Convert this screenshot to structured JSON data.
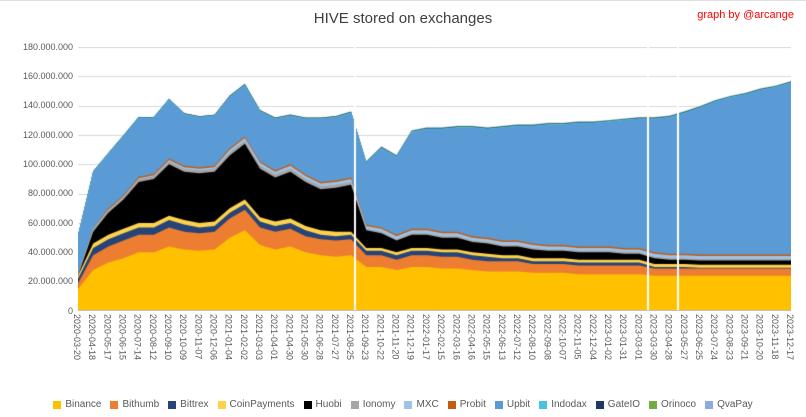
{
  "title": "HIVE stored on exchanges",
  "credit": "graph by @arcange",
  "colors": {
    "background": "#FFFFFF",
    "gridline": "#D9D9D9",
    "axis_line": "#BFBFBF",
    "tick_text": "#595959",
    "title_text": "#404040",
    "credit_text": "#FF0000"
  },
  "chart_data": {
    "type": "area",
    "stacked": true,
    "title": "HIVE stored on exchanges",
    "xlabel": "",
    "ylabel": "",
    "value_unit": "HIVE, series values expressed in millions",
    "unit_multiplier": 1000000,
    "ylim": [
      0,
      180000000
    ],
    "grid": "horizontal",
    "legend_position": "bottom",
    "y_tick_values": [
      0,
      20000000,
      40000000,
      60000000,
      80000000,
      100000000,
      120000000,
      140000000,
      160000000,
      180000000
    ],
    "y_tick_labels": [
      "0",
      "20.000.000",
      "40.000.000",
      "60.000.000",
      "80.000.000",
      "100.000.000",
      "120.000.000",
      "140.000.000",
      "160.000.000",
      "180.000.000"
    ],
    "categories": [
      "2020-03-20",
      "2020-04-18",
      "2020-05-17",
      "2020-06-15",
      "2020-07-14",
      "2020-08-12",
      "2020-09-10",
      "2020-10-09",
      "2020-11-07",
      "2020-12-06",
      "2021-01-04",
      "2021-02-02",
      "2021-03-03",
      "2021-04-01",
      "2021-04-30",
      "2021-05-30",
      "2021-06-28",
      "2021-07-27",
      "2021-08-25",
      "2021-09-23",
      "2021-10-22",
      "2021-11-20",
      "2021-12-19",
      "2022-01-17",
      "2022-02-15",
      "2022-03-16",
      "2022-04-16",
      "2022-05-15",
      "2022-06-13",
      "2022-07-12",
      "2022-08-10",
      "2022-09-08",
      "2022-10-07",
      "2022-11-05",
      "2022-12-04",
      "2023-01-02",
      "2023-01-31",
      "2023-03-01",
      "2023-03-30",
      "2023-04-28",
      "2023-05-27",
      "2023-06-25",
      "2023-07-24",
      "2023-08-23",
      "2023-09-21",
      "2023-10-20",
      "2023-11-18",
      "2023-12-17"
    ],
    "gap_positions": [
      0.388,
      0.8,
      0.842
    ],
    "series": [
      {
        "name": "Binance",
        "color": "#FFC000",
        "values": [
          15,
          28,
          33,
          36,
          40,
          40,
          44,
          42,
          41,
          42,
          50,
          55,
          45,
          42,
          44,
          40,
          38,
          37,
          38,
          30,
          30,
          28,
          30,
          30,
          29,
          29,
          28,
          27,
          27,
          27,
          26,
          26,
          26,
          25,
          25,
          25,
          25,
          25,
          24,
          24,
          24,
          24,
          24,
          24,
          24,
          24,
          24,
          24
        ]
      },
      {
        "name": "Bithumb",
        "color": "#ED7D31",
        "values": [
          4,
          10,
          11,
          12,
          12,
          12,
          13,
          12,
          12,
          12,
          13,
          14,
          12,
          12,
          12,
          11,
          11,
          11,
          11,
          8,
          8,
          7,
          8,
          8,
          8,
          8,
          7,
          7,
          7,
          7,
          6,
          6,
          6,
          6,
          6,
          6,
          6,
          6,
          5,
          5,
          5,
          5,
          5,
          5,
          5,
          5,
          5,
          5
        ]
      },
      {
        "name": "Bittrex",
        "color": "#264478",
        "values": [
          3,
          5,
          5,
          5,
          5,
          5,
          5,
          5,
          4,
          4,
          4,
          4,
          4,
          4,
          4,
          4,
          3,
          3,
          3,
          3,
          3,
          3,
          3,
          3,
          3,
          3,
          3,
          3,
          2,
          2,
          2,
          2,
          2,
          2,
          2,
          2,
          2,
          2,
          1,
          1,
          1,
          0.5,
          0.5,
          0.5,
          0.5,
          0.5,
          0.5,
          0.5
        ]
      },
      {
        "name": "CoinPayments",
        "color": "#FFD24D",
        "values": [
          2,
          3,
          3,
          3,
          3,
          3,
          3,
          3,
          3,
          3,
          3,
          3,
          3,
          3,
          3,
          3,
          3,
          3,
          2,
          2,
          2,
          2,
          2,
          2,
          2,
          2,
          2,
          2,
          2,
          2,
          2,
          2,
          2,
          2,
          2,
          2,
          2,
          2,
          2,
          2,
          2,
          2,
          2,
          2,
          2,
          2,
          2,
          2
        ]
      },
      {
        "name": "Huobi",
        "color": "#000000",
        "values": [
          0,
          8,
          15,
          20,
          28,
          30,
          35,
          33,
          34,
          34,
          36,
          38,
          33,
          30,
          32,
          30,
          28,
          30,
          32,
          12,
          10,
          8,
          9,
          9,
          8,
          8,
          7,
          7,
          6,
          6,
          6,
          5,
          5,
          5,
          5,
          5,
          4,
          4,
          4,
          3,
          3,
          3,
          3,
          3,
          3,
          3,
          3,
          3
        ]
      },
      {
        "name": "Ionomy",
        "color": "#A6A6A6",
        "values": [
          1,
          2,
          2,
          2,
          2,
          2,
          2,
          2,
          2,
          2,
          2,
          2,
          2,
          2,
          2,
          2,
          2,
          2,
          2,
          1,
          1,
          1,
          1,
          1,
          1,
          1,
          1,
          1,
          1,
          1,
          1,
          1,
          1,
          1,
          1,
          1,
          1,
          1,
          1,
          1,
          1,
          1,
          1,
          1,
          1,
          1,
          1,
          1
        ]
      },
      {
        "name": "MXC",
        "color": "#9DC3E6",
        "values": [
          0,
          0,
          0,
          0,
          0.5,
          0.5,
          1,
          1,
          1,
          1,
          2,
          2,
          2,
          2,
          2,
          2,
          2,
          2,
          2,
          2,
          2,
          2,
          2,
          2,
          2,
          2,
          2,
          2,
          2,
          2,
          2,
          2,
          2,
          2,
          2,
          2,
          2,
          2,
          2,
          2,
          2,
          2,
          2,
          2,
          2,
          2,
          2,
          2
        ]
      },
      {
        "name": "Probit",
        "color": "#C55A11",
        "values": [
          0,
          0.5,
          1,
          1,
          1,
          1,
          1,
          1,
          1,
          1,
          1,
          1,
          1,
          1,
          1,
          1,
          1,
          1,
          1,
          1,
          1,
          1,
          1,
          1,
          1,
          1,
          1,
          1,
          1,
          1,
          1,
          1,
          1,
          1,
          1,
          1,
          1,
          1,
          1,
          1,
          1,
          1,
          1,
          1,
          1,
          1,
          1,
          1
        ]
      },
      {
        "name": "Upbit",
        "color": "#5B9BD5",
        "values": [
          26,
          38,
          37,
          40,
          40,
          38,
          40,
          35,
          34,
          34,
          35,
          35,
          34,
          35,
          33,
          38,
          43,
          43,
          44,
          42,
          54,
          53,
          66,
          68,
          70,
          71,
          74,
          74,
          77,
          78,
          80,
          82,
          82,
          84,
          84,
          85,
          87,
          88,
          91,
          93,
          96,
          100,
          104,
          107,
          109,
          112,
          114,
          117
        ]
      },
      {
        "name": "Indodax",
        "color": "#47C2E0",
        "values": [
          0.5,
          0.5,
          0.5,
          0.5,
          0.5,
          0.5,
          0.5,
          0.5,
          0.5,
          0.5,
          0.5,
          0.5,
          0.5,
          0.5,
          0.5,
          0.5,
          0.5,
          0.5,
          0.5,
          0.5,
          0.5,
          0.5,
          0.5,
          0.5,
          0.5,
          0.5,
          0.5,
          0.5,
          0.5,
          0.5,
          0.5,
          0.5,
          0.5,
          0.5,
          0.5,
          0.5,
          0.5,
          0.5,
          0.5,
          0.5,
          0.5,
          0.5,
          0.5,
          0.5,
          0.5,
          0.5,
          0.5,
          0.5
        ]
      },
      {
        "name": "GateIO",
        "color": "#203864",
        "values": [
          0.3,
          0.3,
          0.3,
          0.3,
          0.3,
          0.3,
          0.3,
          0.3,
          0.3,
          0.3,
          0.3,
          0.3,
          0.3,
          0.3,
          0.3,
          0.3,
          0.3,
          0.3,
          0.3,
          0.3,
          0.3,
          0.3,
          0.3,
          0.3,
          0.3,
          0.3,
          0.3,
          0.3,
          0.3,
          0.3,
          0.3,
          0.3,
          0.3,
          0.3,
          0.3,
          0.3,
          0.3,
          0.3,
          0.3,
          0.3,
          0.3,
          0.3,
          0.3,
          0.3,
          0.3,
          0.3,
          0.3,
          0.3
        ]
      },
      {
        "name": "Orinoco",
        "color": "#70AD47",
        "values": [
          0,
          0,
          0,
          0,
          0,
          0,
          0,
          0,
          0,
          0,
          0.2,
          0.2,
          0.2,
          0.2,
          0.2,
          0.2,
          0.2,
          0.2,
          0.2,
          0.2,
          0.2,
          0.2,
          0.2,
          0.2,
          0.2,
          0.2,
          0.2,
          0.2,
          0.2,
          0.2,
          0.2,
          0.2,
          0.2,
          0.2,
          0.2,
          0.2,
          0.2,
          0.2,
          0.2,
          0.2,
          0.2,
          0.2,
          0.2,
          0.2,
          0.2,
          0.2,
          0.2,
          0.2
        ]
      },
      {
        "name": "QvaPay",
        "color": "#8FAADC",
        "values": [
          0,
          0,
          0,
          0,
          0,
          0,
          0,
          0,
          0,
          0,
          0,
          0,
          0,
          0,
          0,
          0,
          0,
          0,
          0,
          0,
          0.3,
          0.3,
          0.3,
          0.3,
          0.3,
          0.3,
          0.3,
          0.3,
          0.3,
          0.3,
          0.3,
          0.3,
          0.3,
          0.3,
          0.3,
          0.3,
          0.3,
          0.3,
          0.3,
          0.3,
          0.3,
          0.3,
          0.3,
          0.3,
          0.3,
          0.3,
          0.3,
          0.3
        ]
      }
    ]
  }
}
